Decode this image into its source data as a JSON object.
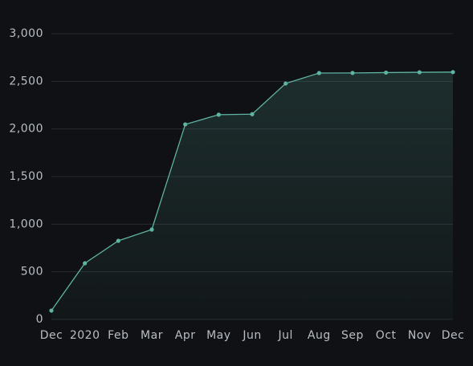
{
  "chart_data": {
    "type": "area",
    "categories": [
      "Dec",
      "2020",
      "Feb",
      "Mar",
      "Apr",
      "May",
      "Jun",
      "Jul",
      "Aug",
      "Sep",
      "Oct",
      "Nov",
      "Dec"
    ],
    "values": [
      93,
      590,
      826,
      944,
      2048,
      2150,
      2155,
      2477,
      2587,
      2588,
      2592,
      2595,
      2597
    ],
    "color": "#5fb3a3",
    "ylim": [
      0,
      3000
    ],
    "yticks": [
      0,
      500,
      {
        "value": 1000,
        "label": "1,000"
      },
      {
        "value": 1500,
        "label": "1,500"
      },
      {
        "value": 2000,
        "label": "2,000"
      },
      {
        "value": 2500,
        "label": "2,500"
      },
      {
        "value": 3000,
        "label": "3,000"
      }
    ],
    "grid": true
  }
}
